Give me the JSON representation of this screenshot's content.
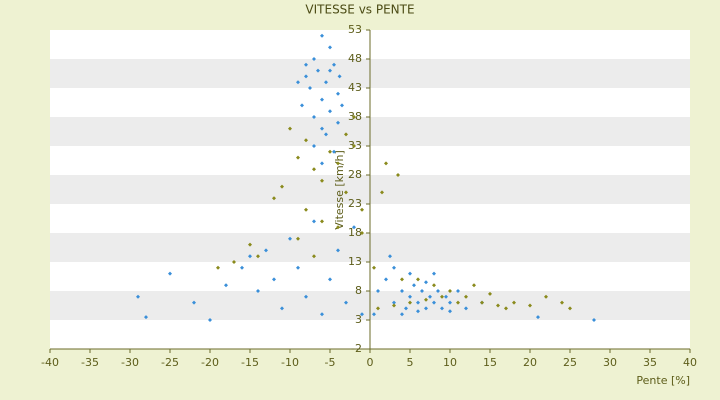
{
  "chart_data": {
    "type": "scatter",
    "title": "VITESSE vs PENTE",
    "x_label": "Pente [%]",
    "y_label": "Vitesse [km/h]",
    "xlim": [
      -40,
      40
    ],
    "xticks": [
      -40,
      -35,
      -30,
      -25,
      -20,
      -15,
      -10,
      -5,
      0,
      5,
      10,
      15,
      20,
      25,
      30,
      35,
      40
    ],
    "ylim": [
      -2,
      53
    ],
    "yticks": [
      -2,
      3,
      8,
      13,
      18,
      23,
      28,
      33,
      38,
      43,
      48,
      53
    ],
    "bands": true,
    "series": [
      {
        "color": "#3a8fd9",
        "x": [
          -6,
          -5,
          -7,
          -4.5,
          -6.5,
          -8,
          -5.5,
          -7.5,
          -4,
          -6,
          -8.5,
          -5,
          -7,
          -4,
          -6,
          -9,
          -3.5,
          -5.5,
          -7,
          -4.5,
          -6,
          -8,
          -5,
          -3.8,
          -29,
          -28,
          -25,
          -22,
          -20,
          -18,
          -16,
          -15,
          -14,
          -13,
          -12,
          -11,
          -10,
          -9,
          -8,
          -7,
          -6,
          -5,
          -4,
          -3,
          -2,
          -1,
          1,
          2,
          3,
          4,
          4.5,
          5,
          5.5,
          6,
          6.5,
          7,
          7.5,
          8,
          8.5,
          9,
          9.5,
          10,
          11,
          12,
          3,
          5,
          8,
          14,
          21,
          28,
          0.5,
          2.5,
          4,
          6,
          7,
          10
        ],
        "y": [
          52,
          50,
          48,
          47,
          46,
          45,
          44,
          43,
          42,
          41,
          40,
          39,
          38,
          37,
          36,
          44,
          40,
          35,
          33,
          32,
          30,
          47,
          46,
          45,
          7,
          3.5,
          11,
          6,
          3,
          9,
          12,
          14,
          8,
          15,
          10,
          5,
          17,
          12,
          7,
          20,
          4,
          10,
          15,
          6,
          19,
          4,
          8,
          10,
          6,
          8,
          5,
          7,
          9,
          6,
          8,
          5,
          7,
          6,
          8,
          5,
          7,
          6,
          8,
          5,
          12,
          11,
          11,
          6,
          3.5,
          3,
          4,
          14,
          4,
          4.5,
          9.5,
          4.5
        ]
      },
      {
        "color": "#8a8a1c",
        "x": [
          -10,
          -9,
          -8,
          -7,
          -6,
          -5,
          -4,
          -3,
          -2,
          -1,
          -11,
          -12,
          -8,
          -6,
          -4,
          -3,
          -2,
          -1,
          -15,
          -17,
          -19,
          -14,
          -9,
          -7,
          2,
          3.5,
          1.5,
          4,
          6,
          8,
          10,
          12,
          14,
          16,
          18,
          20,
          22,
          24,
          25,
          13,
          11,
          9,
          7,
          5,
          3,
          1,
          15,
          17,
          0.5
        ],
        "y": [
          36,
          31,
          34,
          29,
          27,
          32,
          30,
          25,
          33,
          22,
          26,
          24,
          22,
          20,
          19,
          35,
          38,
          18,
          16,
          13,
          12,
          14,
          17,
          14,
          30,
          28,
          25,
          10,
          10,
          9,
          8,
          7,
          6,
          5.5,
          6,
          5.5,
          7,
          6,
          5,
          9,
          6,
          7,
          6.5,
          6,
          5.5,
          5,
          7.5,
          5,
          12
        ]
      }
    ]
  }
}
